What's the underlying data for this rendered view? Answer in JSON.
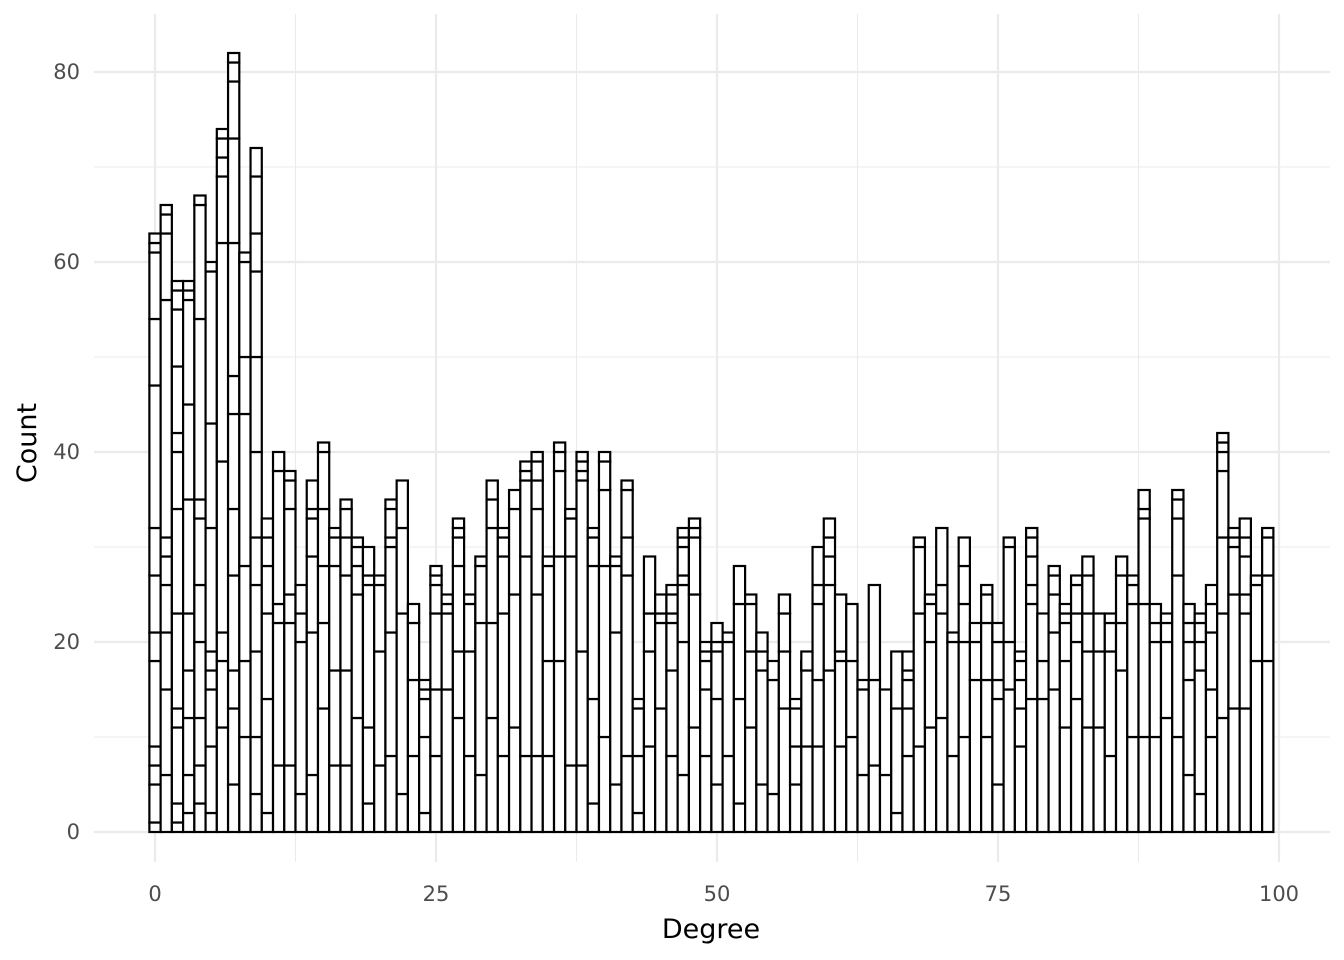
{
  "chart_data": {
    "type": "bar",
    "subtype": "stacked-histogram",
    "title": "",
    "xlabel": "Degree",
    "ylabel": "Count",
    "xlim": [
      -0.5,
      99.5
    ],
    "ylim": [
      0,
      85
    ],
    "x_ticks": [
      0,
      25,
      50,
      75,
      100
    ],
    "x_tick_labels": [
      "0",
      "25",
      "50",
      "75",
      "100"
    ],
    "y_ticks": [
      0,
      20,
      40,
      60,
      80
    ],
    "y_tick_labels": [
      "0",
      "20",
      "40",
      "60",
      "80"
    ],
    "grid": true,
    "legend": "none",
    "colors": {
      "bar_fill": "#ffffff",
      "bar_outline": "#000000",
      "grid": "#ebebeb"
    },
    "x": [
      0,
      1,
      2,
      3,
      4,
      5,
      6,
      7,
      8,
      9,
      10,
      11,
      12,
      13,
      14,
      15,
      16,
      17,
      18,
      19,
      20,
      21,
      22,
      23,
      24,
      25,
      26,
      27,
      28,
      29,
      30,
      31,
      32,
      33,
      34,
      35,
      36,
      37,
      38,
      39,
      40,
      41,
      42,
      43,
      44,
      45,
      46,
      47,
      48,
      49,
      50,
      51,
      52,
      53,
      54,
      55,
      56,
      57,
      58,
      59,
      60,
      61,
      62,
      63,
      64,
      65,
      66,
      67,
      68,
      69,
      70,
      71,
      72,
      73,
      74,
      75,
      76,
      77,
      78,
      79,
      80,
      81,
      82,
      83,
      84,
      85,
      86,
      87,
      88,
      89,
      90,
      91,
      92,
      93,
      94,
      95,
      96,
      97,
      98,
      99
    ],
    "totals": [
      63,
      66,
      58,
      58,
      67,
      60,
      74,
      82,
      61,
      72,
      33,
      40,
      38,
      26,
      37,
      41,
      32,
      35,
      31,
      30,
      27,
      35,
      37,
      24,
      16,
      28,
      25,
      33,
      25,
      29,
      37,
      32,
      36,
      39,
      40,
      29,
      41,
      34,
      40,
      32,
      40,
      29,
      37,
      14,
      29,
      25,
      26,
      32,
      33,
      20,
      22,
      21,
      28,
      25,
      21,
      18,
      25,
      14,
      19,
      30,
      33,
      25,
      24,
      16,
      26,
      15,
      19,
      19,
      31,
      25,
      32,
      21,
      31,
      22,
      26,
      22,
      31,
      19,
      32,
      23,
      28,
      24,
      27,
      29,
      23,
      23,
      29,
      27,
      36,
      24,
      23,
      36,
      24,
      23,
      26,
      42,
      32,
      33,
      27,
      32
    ],
    "segment_boundaries": [
      [
        1,
        5,
        7,
        9,
        18,
        21,
        27,
        32,
        47,
        54,
        61,
        62
      ],
      [
        6,
        15,
        21,
        26,
        29,
        31,
        56,
        63,
        65
      ],
      [
        1,
        3,
        11,
        13,
        23,
        34,
        40,
        42,
        49,
        55,
        57
      ],
      [
        2,
        6,
        12,
        17,
        23,
        35,
        45,
        56,
        57
      ],
      [
        3,
        7,
        12,
        20,
        26,
        33,
        35,
        54,
        66
      ],
      [
        2,
        9,
        15,
        17,
        19,
        32,
        43,
        59
      ],
      [
        11,
        18,
        21,
        39,
        62,
        69,
        71,
        73
      ],
      [
        5,
        13,
        17,
        27,
        34,
        44,
        48,
        62,
        73,
        79,
        81
      ],
      [
        10,
        18,
        28,
        44,
        50,
        60
      ],
      [
        4,
        10,
        19,
        26,
        31,
        40,
        50,
        59,
        63,
        69
      ],
      [
        2,
        14,
        23,
        28,
        31
      ],
      [
        7,
        22,
        24,
        38
      ],
      [
        7,
        22,
        25,
        34,
        37
      ],
      [
        4,
        20,
        23
      ],
      [
        6,
        21,
        29,
        33,
        34
      ],
      [
        13,
        22,
        28,
        34,
        40
      ],
      [
        7,
        17,
        28,
        31
      ],
      [
        7,
        17,
        27,
        31,
        34
      ],
      [
        12,
        25,
        28,
        30
      ],
      [
        3,
        11,
        26,
        27
      ],
      [
        7,
        19,
        26
      ],
      [
        8,
        21,
        30,
        31,
        34
      ],
      [
        4,
        23,
        32
      ],
      [
        8,
        16,
        22
      ],
      [
        2,
        10,
        14,
        15
      ],
      [
        8,
        15,
        23,
        26,
        27
      ],
      [
        15,
        23,
        24
      ],
      [
        12,
        19,
        28,
        31,
        32
      ],
      [
        8,
        19,
        24
      ],
      [
        6,
        22,
        28
      ],
      [
        12,
        22,
        32,
        35
      ],
      [
        8,
        23,
        29,
        31
      ],
      [
        11,
        25,
        34
      ],
      [
        8,
        29,
        37,
        38
      ],
      [
        8,
        25,
        34,
        37,
        39
      ],
      [
        8,
        18,
        28
      ],
      [
        18,
        29,
        38,
        40
      ],
      [
        7,
        29,
        33
      ],
      [
        7,
        19,
        37,
        38,
        39
      ],
      [
        3,
        14,
        28,
        31
      ],
      [
        10,
        28,
        36,
        39
      ],
      [
        5,
        21,
        28
      ],
      [
        8,
        27,
        31,
        36
      ],
      [
        2,
        8,
        13
      ],
      [
        9,
        19,
        23
      ],
      [
        13,
        22,
        23
      ],
      [
        8,
        17,
        22,
        23,
        25
      ],
      [
        6,
        20,
        26,
        27,
        30,
        31
      ],
      [
        11,
        25,
        31,
        32
      ],
      [
        8,
        15,
        18,
        19
      ],
      [
        5,
        14,
        19,
        20
      ],
      [
        8,
        20,
        21
      ],
      [
        3,
        14,
        24
      ],
      [
        11,
        19,
        24
      ],
      [
        5,
        17,
        19
      ],
      [
        4,
        16
      ],
      [
        13,
        19,
        23
      ],
      [
        5,
        9,
        13
      ],
      [
        9,
        18,
        17
      ],
      [
        9,
        16,
        24,
        26
      ],
      [
        17,
        26,
        29,
        31
      ],
      [
        9,
        18,
        19
      ],
      [
        10,
        18
      ],
      [
        6,
        15
      ],
      [
        7,
        16
      ],
      [
        6,
        15
      ],
      [
        2,
        13
      ],
      [
        8,
        13,
        16,
        17
      ],
      [
        9,
        23,
        30
      ],
      [
        11,
        20,
        24
      ],
      [
        12,
        23,
        26
      ],
      [
        8,
        20
      ],
      [
        10,
        20,
        24,
        28
      ],
      [
        16,
        20
      ],
      [
        10,
        16,
        22,
        25
      ],
      [
        5,
        14,
        16,
        20
      ],
      [
        15,
        20,
        30
      ],
      [
        9,
        13,
        16,
        18
      ],
      [
        14,
        24,
        26,
        29,
        31
      ],
      [
        14,
        18,
        23
      ],
      [
        15,
        21,
        25,
        27
      ],
      [
        11,
        18,
        22,
        23
      ],
      [
        14,
        20,
        23,
        26
      ],
      [
        11,
        19,
        23,
        27
      ],
      [
        11,
        19
      ],
      [
        8,
        19,
        22
      ],
      [
        17,
        22,
        27
      ],
      [
        10,
        24,
        26
      ],
      [
        10,
        24,
        33,
        34
      ],
      [
        10,
        20,
        22
      ],
      [
        12,
        20,
        22
      ],
      [
        10,
        27,
        33,
        35
      ],
      [
        6,
        16,
        20,
        22
      ],
      [
        4,
        17,
        20,
        22
      ],
      [
        10,
        15,
        21,
        24
      ],
      [
        12,
        23,
        31,
        38,
        40,
        41
      ],
      [
        13,
        25,
        30,
        31
      ],
      [
        13,
        23,
        25,
        29,
        31
      ],
      [
        18,
        26
      ],
      [
        18,
        27,
        31
      ]
    ]
  }
}
